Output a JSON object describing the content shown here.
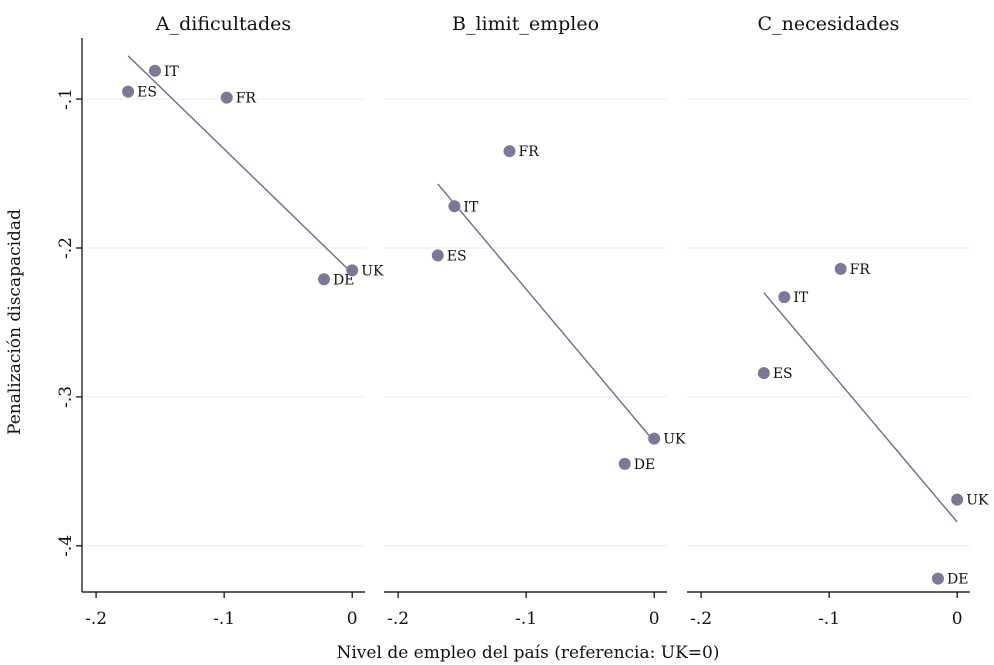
{
  "chart_data": {
    "type": "scatter",
    "xlabel": "Nivel de empleo del país (referencia: UK=0)",
    "ylabel": "Penalización discapacidad",
    "xlim": [
      -0.211,
      0.01
    ],
    "ylim": [
      -0.431,
      -0.059
    ],
    "grid": true,
    "colors": {
      "points": "#7a7a98",
      "fit_line": "#6c6c90",
      "grid": "#ebebf0"
    },
    "xticks": [
      {
        "value": -0.2,
        "label": "-.2"
      },
      {
        "value": -0.1,
        "label": "-.1"
      },
      {
        "value": 0.0,
        "label": "0"
      }
    ],
    "yticks": [
      {
        "value": -0.1,
        "label": "-.1"
      },
      {
        "value": -0.2,
        "label": "-.2"
      },
      {
        "value": -0.3,
        "label": "-.3"
      },
      {
        "value": -0.4,
        "label": "-.4"
      }
    ],
    "panels": [
      {
        "title": "A_dificultades",
        "points": [
          {
            "label": "IT",
            "x": -0.154,
            "y": -0.081
          },
          {
            "label": "ES",
            "x": -0.175,
            "y": -0.095
          },
          {
            "label": "FR",
            "x": -0.098,
            "y": -0.099
          },
          {
            "label": "DE",
            "x": -0.022,
            "y": -0.221
          },
          {
            "label": "UK",
            "x": 0.0,
            "y": -0.215
          }
        ],
        "fit_line": {
          "x": [
            -0.175,
            0.0
          ],
          "y": [
            -0.071,
            -0.217
          ]
        }
      },
      {
        "title": "B_limit_empleo",
        "points": [
          {
            "label": "FR",
            "x": -0.113,
            "y": -0.135
          },
          {
            "label": "IT",
            "x": -0.156,
            "y": -0.172
          },
          {
            "label": "ES",
            "x": -0.169,
            "y": -0.205
          },
          {
            "label": "UK",
            "x": 0.0,
            "y": -0.328
          },
          {
            "label": "DE",
            "x": -0.023,
            "y": -0.345
          }
        ],
        "fit_line": {
          "x": [
            -0.169,
            0.0
          ],
          "y": [
            -0.157,
            -0.33
          ]
        }
      },
      {
        "title": "C_necesidades",
        "points": [
          {
            "label": "FR",
            "x": -0.091,
            "y": -0.214
          },
          {
            "label": "IT",
            "x": -0.135,
            "y": -0.233
          },
          {
            "label": "ES",
            "x": -0.151,
            "y": -0.284
          },
          {
            "label": "UK",
            "x": 0.0,
            "y": -0.369
          },
          {
            "label": "DE",
            "x": -0.015,
            "y": -0.422
          }
        ],
        "fit_line": {
          "x": [
            -0.151,
            0.0
          ],
          "y": [
            -0.23,
            -0.384
          ]
        }
      }
    ]
  }
}
